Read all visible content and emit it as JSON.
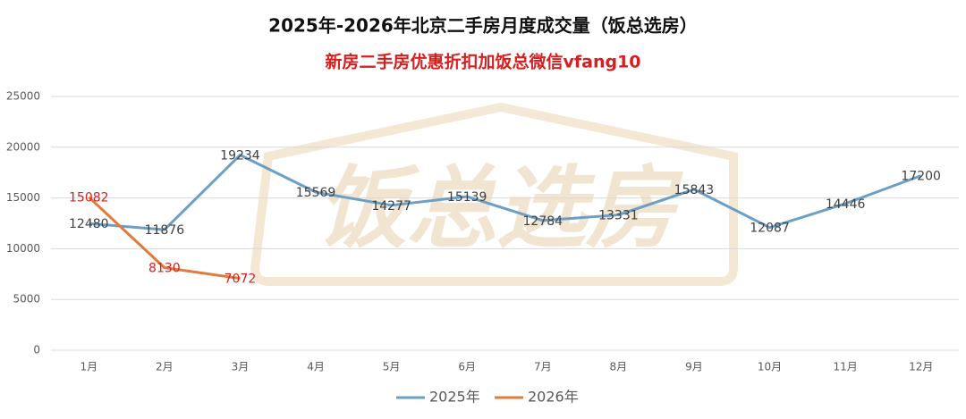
{
  "chart_data": {
    "type": "line",
    "title": "2025年-2026年北京二手房月度成交量（饭总选房）",
    "subtitle": "新房二手房优惠折扣加饭总微信vfang10",
    "watermark": "饭总选房",
    "categories": [
      "1月",
      "2月",
      "3月",
      "4月",
      "5月",
      "6月",
      "7月",
      "8月",
      "9月",
      "10月",
      "11月",
      "12月"
    ],
    "series": [
      {
        "name": "2025年",
        "color": "#6b9fc6",
        "label_color": "#404040",
        "values": [
          12480,
          11876,
          19234,
          15569,
          14277,
          15139,
          12784,
          13331,
          15843,
          12087,
          14446,
          17200
        ]
      },
      {
        "name": "2026年",
        "color": "#e07b39",
        "label_color": "#d81e1e",
        "values": [
          15082,
          8130,
          7072,
          null,
          null,
          null,
          null,
          null,
          null,
          null,
          null,
          null
        ]
      }
    ],
    "ylim": [
      0,
      25000
    ],
    "yticks": [
      0,
      5000,
      10000,
      15000,
      20000,
      25000
    ],
    "grid": true
  }
}
